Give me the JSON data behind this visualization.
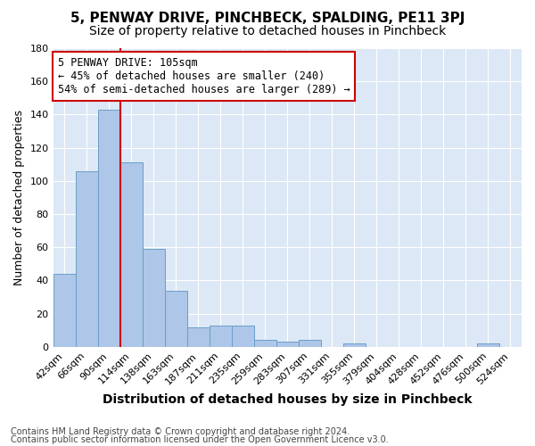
{
  "title": "5, PENWAY DRIVE, PINCHBECK, SPALDING, PE11 3PJ",
  "subtitle": "Size of property relative to detached houses in Pinchbeck",
  "xlabel": "Distribution of detached houses by size in Pinchbeck",
  "ylabel": "Number of detached properties",
  "categories": [
    "42sqm",
    "66sqm",
    "90sqm",
    "114sqm",
    "138sqm",
    "163sqm",
    "187sqm",
    "211sqm",
    "235sqm",
    "259sqm",
    "283sqm",
    "307sqm",
    "331sqm",
    "355sqm",
    "379sqm",
    "404sqm",
    "428sqm",
    "452sqm",
    "476sqm",
    "500sqm",
    "524sqm"
  ],
  "values": [
    44,
    106,
    143,
    111,
    59,
    34,
    12,
    13,
    13,
    4,
    3,
    4,
    0,
    2,
    0,
    0,
    0,
    0,
    0,
    2,
    0
  ],
  "bar_color": "#aec6e8",
  "bar_edge_color": "#6a9fc8",
  "vline_color": "#cc0000",
  "vline_pos": 2.5,
  "ylim": [
    0,
    180
  ],
  "yticks": [
    0,
    20,
    40,
    60,
    80,
    100,
    120,
    140,
    160,
    180
  ],
  "annotation_line1": "5 PENWAY DRIVE: 105sqm",
  "annotation_line2": "← 45% of detached houses are smaller (240)",
  "annotation_line3": "54% of semi-detached houses are larger (289) →",
  "annotation_box_color": "#cc0000",
  "footnote1": "Contains HM Land Registry data © Crown copyright and database right 2024.",
  "footnote2": "Contains public sector information licensed under the Open Government Licence v3.0.",
  "background_color": "#ffffff",
  "plot_bg_color": "#dce8f5",
  "grid_color": "#ffffff",
  "title_fontsize": 11,
  "subtitle_fontsize": 10,
  "xlabel_fontsize": 10,
  "ylabel_fontsize": 9,
  "tick_fontsize": 8,
  "annotation_fontsize": 8.5,
  "footnote_fontsize": 7
}
